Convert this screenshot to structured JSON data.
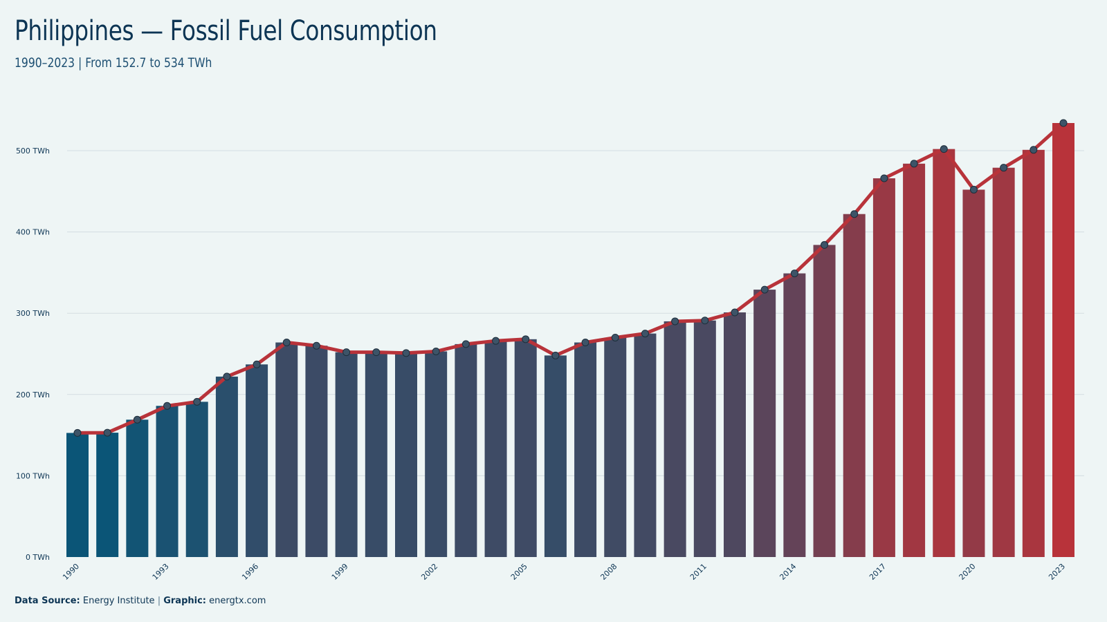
{
  "title": "Philippines — Fossil Fuel Consumption",
  "subtitle": "1990–2023 | From 152.7 to 534 TWh",
  "footer": {
    "source_label": "Data Source:",
    "source_value": "Energy Institute",
    "separator": "|",
    "graphic_label": "Graphic:",
    "graphic_value": "energtx.com"
  },
  "colors": {
    "start": "#0b5577",
    "end": "#b8333a",
    "line": "#b8333a",
    "marker_fill": "#3d5468",
    "grid": "#d3dde2",
    "text": "#0d3554"
  },
  "chart_data": {
    "type": "bar",
    "x": [
      1990,
      1991,
      1992,
      1993,
      1994,
      1995,
      1996,
      1997,
      1998,
      1999,
      2000,
      2001,
      2002,
      2003,
      2004,
      2005,
      2006,
      2007,
      2008,
      2009,
      2010,
      2011,
      2012,
      2013,
      2014,
      2015,
      2016,
      2017,
      2018,
      2019,
      2020,
      2021,
      2022,
      2023
    ],
    "values": [
      152.7,
      153,
      169,
      186,
      191,
      222,
      237,
      264,
      260,
      252,
      252,
      251,
      253,
      262,
      266,
      268,
      248,
      264,
      270,
      275,
      290,
      291,
      301,
      329,
      349,
      384,
      422,
      466,
      484,
      502,
      452,
      479,
      501,
      534
    ],
    "overlay": "line-with-markers",
    "x_tick_labels": [
      "1990",
      "1993",
      "1996",
      "1999",
      "2002",
      "2005",
      "2008",
      "2011",
      "2014",
      "2017",
      "2020",
      "2023"
    ],
    "y_tick_labels": [
      "0 TWh",
      "100 TWh",
      "200 TWh",
      "300 TWh",
      "400 TWh",
      "500 TWh"
    ],
    "y_ticks": [
      0,
      100,
      200,
      300,
      400,
      500
    ],
    "ylim": [
      0,
      534
    ],
    "grid": true,
    "legend": "none"
  }
}
